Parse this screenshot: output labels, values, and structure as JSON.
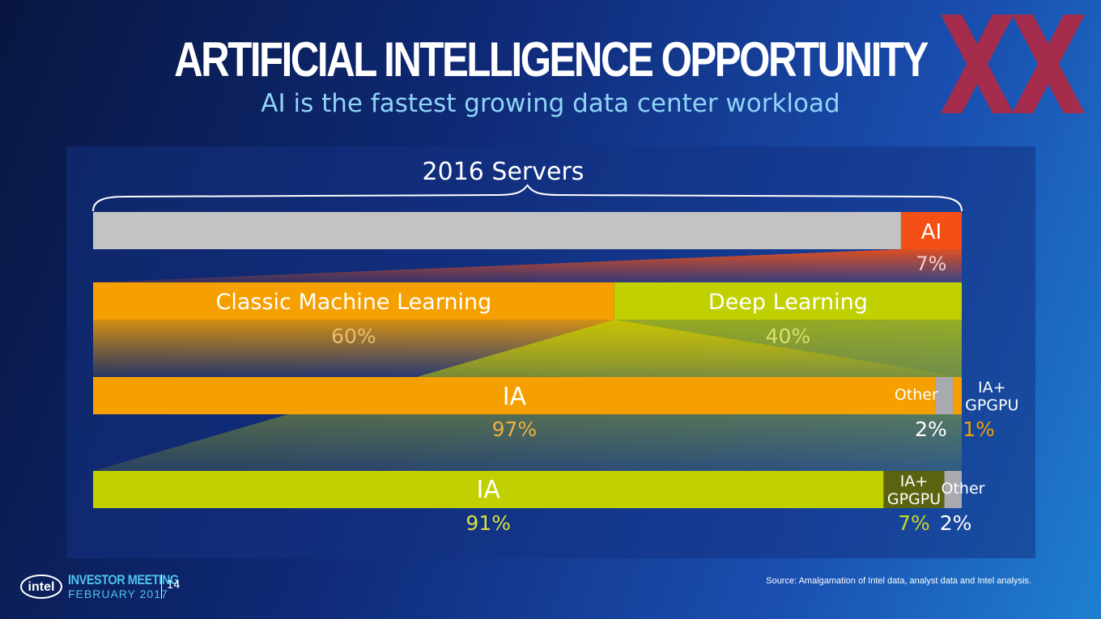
{
  "slide": {
    "title": "ARTIFICIAL INTELLIGENCE OPPORTUNITY",
    "subtitle": "AI is the fastest growing data center workload",
    "source": "Source: Amalgamation of Intel data, analyst data and Intel analysis.",
    "page_number": "14",
    "event_title": "INVESTOR MEETING",
    "event_date": "FEBRUARY 2017",
    "brand": "intel"
  },
  "colors": {
    "gray": "#c3c3c3",
    "ai_red": "#f45015",
    "orange": "#f5a000",
    "lime": "#c0d000",
    "olive": "#5a6410",
    "other_gray": "#a9aab0",
    "logo_red": "#b42841"
  },
  "chart_data": {
    "type": "bar",
    "title": "2016 Servers",
    "rows": [
      {
        "name": "2016 Servers",
        "segments": [
          {
            "label": "",
            "value": 93,
            "value_label": ""
          },
          {
            "label": "AI",
            "value": 7,
            "value_label": "7%"
          }
        ]
      },
      {
        "name": "AI",
        "segments": [
          {
            "label": "Classic Machine Learning",
            "value": 60,
            "value_label": "60%"
          },
          {
            "label": "Deep Learning",
            "value": 40,
            "value_label": "40%"
          }
        ]
      },
      {
        "name": "Classic Machine Learning",
        "segments": [
          {
            "label": "IA",
            "value": 97,
            "value_label": "97%"
          },
          {
            "label": "Other",
            "value": 2,
            "value_label": "2%"
          },
          {
            "label": "IA+ GPGPU",
            "value": 1,
            "value_label": "1%"
          }
        ]
      },
      {
        "name": "Deep Learning",
        "segments": [
          {
            "label": "IA",
            "value": 91,
            "value_label": "91%"
          },
          {
            "label": "IA+ GPGPU",
            "value": 7,
            "value_label": "7%"
          },
          {
            "label": "Other",
            "value": 2,
            "value_label": "2%"
          }
        ]
      }
    ]
  }
}
